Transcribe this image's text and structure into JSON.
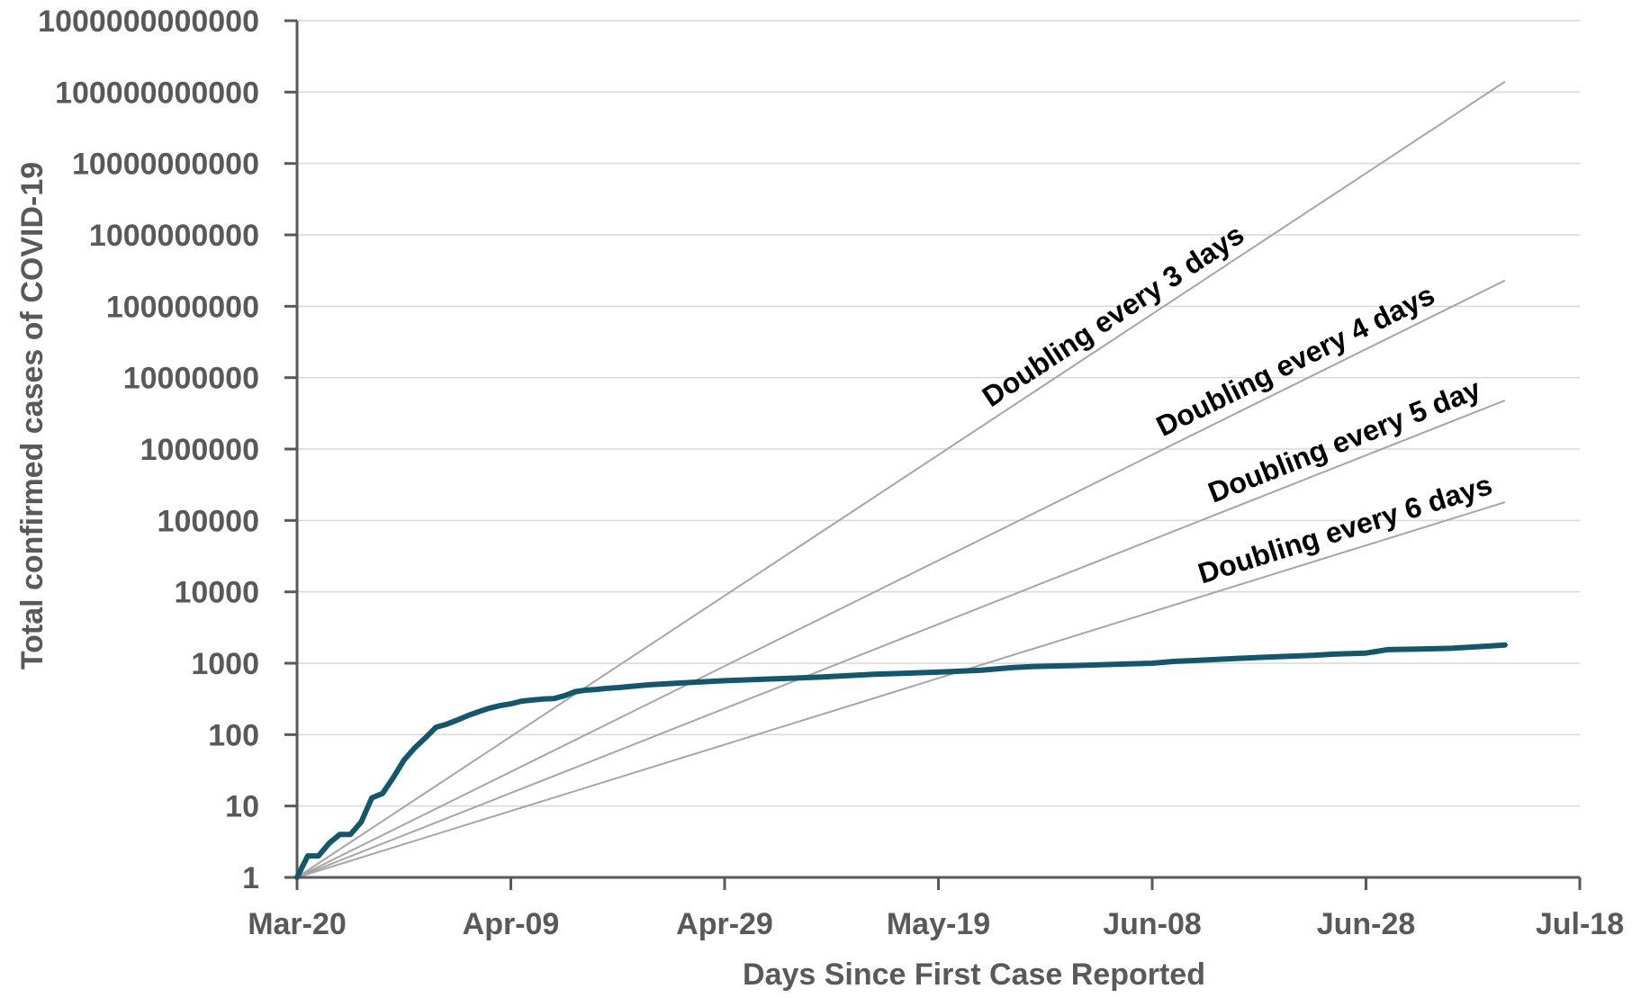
{
  "chart_data": {
    "type": "line",
    "title": "",
    "xlabel": "Days Since First Case Reported",
    "ylabel": "Total confirmed cases of COVID-19",
    "y_scale": "log10",
    "ylim": [
      1,
      1000000000000
    ],
    "xlim": [
      "2020-03-20",
      "2020-07-18"
    ],
    "x_ticks": [
      {
        "date": "2020-03-20",
        "label": "Mar-20"
      },
      {
        "date": "2020-04-09",
        "label": "Apr-09"
      },
      {
        "date": "2020-04-29",
        "label": "Apr-29"
      },
      {
        "date": "2020-05-19",
        "label": "May-19"
      },
      {
        "date": "2020-06-08",
        "label": "Jun-08"
      },
      {
        "date": "2020-06-28",
        "label": "Jun-28"
      },
      {
        "date": "2020-07-18",
        "label": "Jul-18"
      }
    ],
    "y_ticks": [
      {
        "value": 1,
        "label": "1"
      },
      {
        "value": 10,
        "label": "10"
      },
      {
        "value": 100,
        "label": "100"
      },
      {
        "value": 1000,
        "label": "1000"
      },
      {
        "value": 10000,
        "label": "10000"
      },
      {
        "value": 100000,
        "label": "100000"
      },
      {
        "value": 1000000,
        "label": "1000000"
      },
      {
        "value": 10000000,
        "label": "10000000"
      },
      {
        "value": 100000000,
        "label": "100000000"
      },
      {
        "value": 1000000000,
        "label": "1000000000"
      },
      {
        "value": 10000000000,
        "label": "10000000000"
      },
      {
        "value": 100000000000,
        "label": "100000000000"
      },
      {
        "value": 1000000000000,
        "label": "1000000000000"
      }
    ],
    "grid": true,
    "series": [
      {
        "color": "#12576B",
        "points": [
          [
            "2020-03-20",
            1
          ],
          [
            "2020-03-21",
            2
          ],
          [
            "2020-03-22",
            2
          ],
          [
            "2020-03-23",
            3
          ],
          [
            "2020-03-24",
            4
          ],
          [
            "2020-03-25",
            4
          ],
          [
            "2020-03-26",
            6
          ],
          [
            "2020-03-27",
            13
          ],
          [
            "2020-03-28",
            15
          ],
          [
            "2020-03-29",
            25
          ],
          [
            "2020-03-30",
            44
          ],
          [
            "2020-03-31",
            65
          ],
          [
            "2020-04-01",
            90
          ],
          [
            "2020-04-02",
            127
          ],
          [
            "2020-04-03",
            140
          ],
          [
            "2020-04-04",
            160
          ],
          [
            "2020-04-05",
            185
          ],
          [
            "2020-04-06",
            210
          ],
          [
            "2020-04-07",
            235
          ],
          [
            "2020-04-08",
            255
          ],
          [
            "2020-04-09",
            270
          ],
          [
            "2020-04-10",
            295
          ],
          [
            "2020-04-11",
            305
          ],
          [
            "2020-04-12",
            315
          ],
          [
            "2020-04-13",
            320
          ],
          [
            "2020-04-14",
            350
          ],
          [
            "2020-04-15",
            400
          ],
          [
            "2020-04-16",
            420
          ],
          [
            "2020-04-17",
            430
          ],
          [
            "2020-04-18",
            445
          ],
          [
            "2020-04-19",
            455
          ],
          [
            "2020-04-20",
            470
          ],
          [
            "2020-04-22",
            500
          ],
          [
            "2020-04-25",
            530
          ],
          [
            "2020-04-29",
            570
          ],
          [
            "2020-05-03",
            600
          ],
          [
            "2020-05-08",
            640
          ],
          [
            "2020-05-13",
            700
          ],
          [
            "2020-05-19",
            750
          ],
          [
            "2020-05-23",
            800
          ],
          [
            "2020-05-26",
            870
          ],
          [
            "2020-05-28",
            900
          ],
          [
            "2020-06-01",
            930
          ],
          [
            "2020-06-04",
            960
          ],
          [
            "2020-06-08",
            1000
          ],
          [
            "2020-06-10",
            1060
          ],
          [
            "2020-06-13",
            1110
          ],
          [
            "2020-06-16",
            1170
          ],
          [
            "2020-06-20",
            1240
          ],
          [
            "2020-06-23",
            1290
          ],
          [
            "2020-06-25",
            1340
          ],
          [
            "2020-06-28",
            1390
          ],
          [
            "2020-06-30",
            1550
          ],
          [
            "2020-07-03",
            1580
          ],
          [
            "2020-07-06",
            1620
          ],
          [
            "2020-07-09",
            1720
          ],
          [
            "2020-07-11",
            1800
          ]
        ]
      }
    ],
    "reference_lines": [
      {
        "label": "Doubling every 3 days",
        "doubling_days": 3,
        "start": [
          "2020-03-20",
          1
        ],
        "end": [
          "2020-07-11",
          140000000000
        ]
      },
      {
        "label": "Doubling every 4 days",
        "doubling_days": 4,
        "start": [
          "2020-03-20",
          1
        ],
        "end": [
          "2020-07-11",
          230000000
        ]
      },
      {
        "label": "Doubling every 5 day",
        "doubling_days": 5,
        "start": [
          "2020-03-20",
          1
        ],
        "end": [
          "2020-07-11",
          4800000
        ]
      },
      {
        "label": "Doubling every 6 days",
        "doubling_days": 6,
        "start": [
          "2020-03-20",
          1
        ],
        "end": [
          "2020-07-11",
          180000
        ]
      }
    ],
    "colors": {
      "grid": "#D9D9D9",
      "axis": "#595959",
      "reference": "#A6A6A6",
      "series": "#12576B",
      "text": "#595959",
      "annotation": "#000000"
    }
  }
}
